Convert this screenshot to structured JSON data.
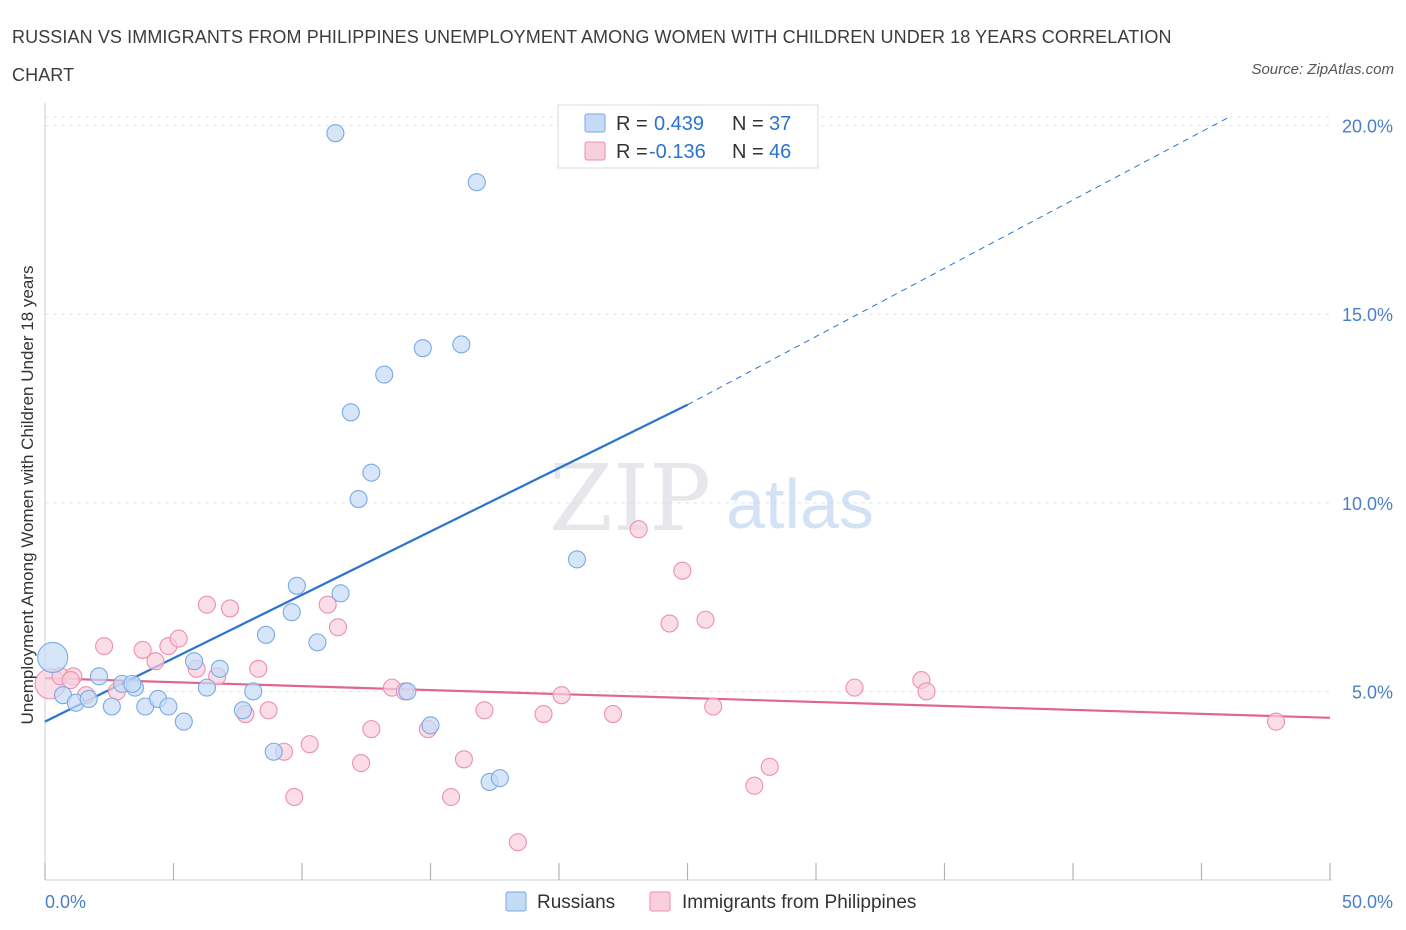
{
  "title": "RUSSIAN VS IMMIGRANTS FROM PHILIPPINES UNEMPLOYMENT AMONG WOMEN WITH CHILDREN UNDER 18 YEARS CORRELATION CHART",
  "source": "Source: ZipAtlas.com",
  "watermark": {
    "zip": "ZIP",
    "atlas": "atlas"
  },
  "colors": {
    "russians": "#7aaae6",
    "russians_fill": "#c5dbf5",
    "russians_line": "#2a74d0",
    "philippines": "#ee8fb0",
    "philippines_fill": "#f8cfdd",
    "philippines_line": "#e2658f",
    "accent_text": "#2a74d0",
    "grid": "#e2e6ea"
  },
  "legend_box": {
    "rows": [
      {
        "r_label": "R =",
        "r_value": "0.439",
        "n_label": "N =",
        "n_value": "37"
      },
      {
        "r_label": "R =",
        "r_value": "-0.136",
        "n_label": "N =",
        "n_value": "46"
      }
    ]
  },
  "chart_data": {
    "type": "scatter",
    "title": "RUSSIAN VS IMMIGRANTS FROM PHILIPPINES UNEMPLOYMENT AMONG WOMEN WITH CHILDREN UNDER 18 YEARS CORRELATION CHART",
    "xlabel": "",
    "ylabel": "Unemployment Among Women with Children Under 18 years",
    "xlim": [
      0,
      50
    ],
    "ylim": [
      0,
      20.6
    ],
    "x_tick_labels": [
      "0.0%",
      "50.0%"
    ],
    "y_ticks": [
      5,
      10,
      15,
      20
    ],
    "y_tick_labels": [
      "5.0%",
      "10.0%",
      "15.0%",
      "20.0%"
    ],
    "grid": true,
    "legend_position": "bottom-center",
    "series": [
      {
        "name": "Russians",
        "trend": {
          "x0": 0,
          "y0": 4.2,
          "x1": 25,
          "y1": 12.6,
          "dash_x1": 46,
          "dash_y1": 20.2
        },
        "points": [
          [
            0.3,
            5.9
          ],
          [
            0.7,
            4.9
          ],
          [
            1.2,
            4.7
          ],
          [
            1.7,
            4.8
          ],
          [
            2.1,
            5.4
          ],
          [
            2.6,
            4.6
          ],
          [
            3.0,
            5.2
          ],
          [
            3.5,
            5.1
          ],
          [
            3.9,
            4.6
          ],
          [
            4.4,
            4.8
          ],
          [
            4.8,
            4.6
          ],
          [
            5.4,
            4.2
          ],
          [
            5.8,
            5.8
          ],
          [
            6.3,
            5.1
          ],
          [
            6.8,
            5.6
          ],
          [
            7.7,
            4.5
          ],
          [
            8.1,
            5.0
          ],
          [
            8.6,
            6.5
          ],
          [
            8.9,
            3.4
          ],
          [
            9.6,
            7.1
          ],
          [
            9.8,
            7.8
          ],
          [
            10.6,
            6.3
          ],
          [
            11.3,
            19.8
          ],
          [
            11.5,
            7.6
          ],
          [
            11.9,
            12.4
          ],
          [
            12.2,
            10.1
          ],
          [
            12.7,
            10.8
          ],
          [
            13.2,
            13.4
          ],
          [
            14.1,
            5.0
          ],
          [
            14.7,
            14.1
          ],
          [
            15.0,
            4.1
          ],
          [
            16.2,
            14.2
          ],
          [
            16.8,
            18.5
          ],
          [
            17.3,
            2.6
          ],
          [
            17.7,
            2.7
          ],
          [
            20.7,
            8.5
          ],
          [
            3.4,
            5.2
          ]
        ]
      },
      {
        "name": "Immigrants from Philippines",
        "trend": {
          "x0": 0,
          "y0": 5.35,
          "x1": 50,
          "y1": 4.3
        },
        "points": [
          [
            0.2,
            5.2
          ],
          [
            0.6,
            5.4
          ],
          [
            1.1,
            5.4
          ],
          [
            1.6,
            4.9
          ],
          [
            2.3,
            6.2
          ],
          [
            2.8,
            5.0
          ],
          [
            3.8,
            6.1
          ],
          [
            4.3,
            5.8
          ],
          [
            4.8,
            6.2
          ],
          [
            5.2,
            6.4
          ],
          [
            5.9,
            5.6
          ],
          [
            6.3,
            7.3
          ],
          [
            6.7,
            5.4
          ],
          [
            7.2,
            7.2
          ],
          [
            7.8,
            4.4
          ],
          [
            8.3,
            5.6
          ],
          [
            8.7,
            4.5
          ],
          [
            9.3,
            3.4
          ],
          [
            9.7,
            2.2
          ],
          [
            10.3,
            3.6
          ],
          [
            11.0,
            7.3
          ],
          [
            11.4,
            6.7
          ],
          [
            12.3,
            3.1
          ],
          [
            12.7,
            4.0
          ],
          [
            13.5,
            5.1
          ],
          [
            14.0,
            5.0
          ],
          [
            14.9,
            4.0
          ],
          [
            15.8,
            2.2
          ],
          [
            16.3,
            3.2
          ],
          [
            17.1,
            4.5
          ],
          [
            18.4,
            1.0
          ],
          [
            19.4,
            4.4
          ],
          [
            20.1,
            4.9
          ],
          [
            22.1,
            4.4
          ],
          [
            23.1,
            9.3
          ],
          [
            24.3,
            6.8
          ],
          [
            24.8,
            8.2
          ],
          [
            25.7,
            6.9
          ],
          [
            26.0,
            4.6
          ],
          [
            27.6,
            2.5
          ],
          [
            28.2,
            3.0
          ],
          [
            31.5,
            5.1
          ],
          [
            34.1,
            5.3
          ],
          [
            34.3,
            5.0
          ],
          [
            47.9,
            4.2
          ],
          [
            1.0,
            5.3
          ]
        ]
      }
    ]
  }
}
